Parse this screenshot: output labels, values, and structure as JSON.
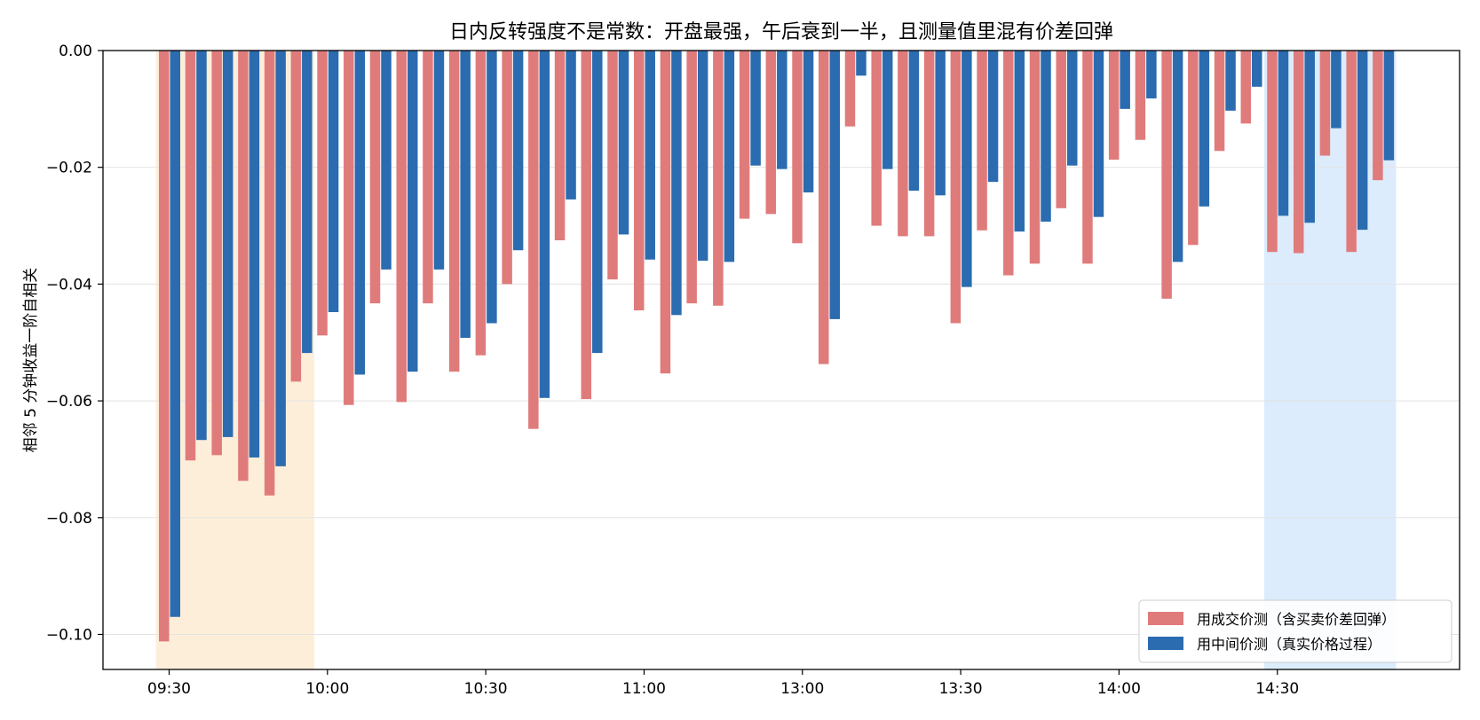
{
  "chart_data": {
    "type": "bar",
    "title": "日内反转强度不是常数：开盘最强，午后衰到一半，且测量值里混有价差回弹",
    "xlabel": "",
    "ylabel": "相邻 5 分钟收益一阶自相关",
    "ylim": [
      -0.106,
      0.0
    ],
    "yticks": [
      "0.00",
      "−0.02",
      "−0.04",
      "−0.06",
      "−0.08",
      "−0.10"
    ],
    "ytick_values": [
      0.0,
      -0.02,
      -0.04,
      -0.06,
      -0.08,
      -0.1
    ],
    "xticks": [
      "09:30",
      "10:00",
      "10:30",
      "11:00",
      "13:00",
      "13:30",
      "14:00",
      "14:30"
    ],
    "xtick_interval_index": [
      0,
      6,
      12,
      18,
      24,
      30,
      36,
      42
    ],
    "grid": "horizontal",
    "legend_position": "bottom-right",
    "shaded_regions": [
      {
        "from_interval": 0,
        "to_interval": 5,
        "color": "#fdebd3"
      },
      {
        "from_interval": 42,
        "to_interval": 46,
        "color": "#d6e9fb"
      }
    ],
    "interval_count": 48,
    "series": [
      {
        "name": "用成交价测（含买卖价差回弹）",
        "color": "#e07b7b",
        "values": [
          -0.1012,
          -0.0702,
          -0.0693,
          -0.0737,
          -0.0762,
          -0.0567,
          -0.0488,
          -0.0607,
          -0.0433,
          -0.0602,
          -0.0433,
          -0.055,
          -0.0522,
          -0.04,
          -0.0648,
          -0.0325,
          -0.0597,
          -0.0392,
          -0.0445,
          -0.0553,
          -0.0433,
          -0.0437,
          -0.0288,
          -0.028,
          -0.033,
          -0.0537,
          -0.013,
          -0.03,
          -0.0318,
          -0.0318,
          -0.0467,
          -0.0308,
          -0.0385,
          -0.0365,
          -0.027,
          -0.0365,
          -0.0187,
          -0.0153,
          -0.0425,
          -0.0333,
          -0.0172,
          -0.0125,
          -0.0345,
          -0.0347,
          -0.018,
          -0.0345,
          -0.0222
        ]
      },
      {
        "name": "用中间价测（真实价格过程）",
        "color": "#2b6cb0",
        "values": [
          -0.097,
          -0.0667,
          -0.0662,
          -0.0697,
          -0.0712,
          -0.0518,
          -0.0448,
          -0.0555,
          -0.0375,
          -0.055,
          -0.0375,
          -0.0492,
          -0.0467,
          -0.0342,
          -0.0595,
          -0.0255,
          -0.0518,
          -0.0315,
          -0.0358,
          -0.0453,
          -0.036,
          -0.0362,
          -0.0197,
          -0.0203,
          -0.0243,
          -0.046,
          -0.0043,
          -0.0203,
          -0.024,
          -0.0248,
          -0.0405,
          -0.0225,
          -0.031,
          -0.0293,
          -0.0197,
          -0.0285,
          -0.01,
          -0.0082,
          -0.0362,
          -0.0267,
          -0.0103,
          -0.0062,
          -0.0283,
          -0.0295,
          -0.0133,
          -0.0307,
          -0.0188
        ]
      }
    ]
  }
}
